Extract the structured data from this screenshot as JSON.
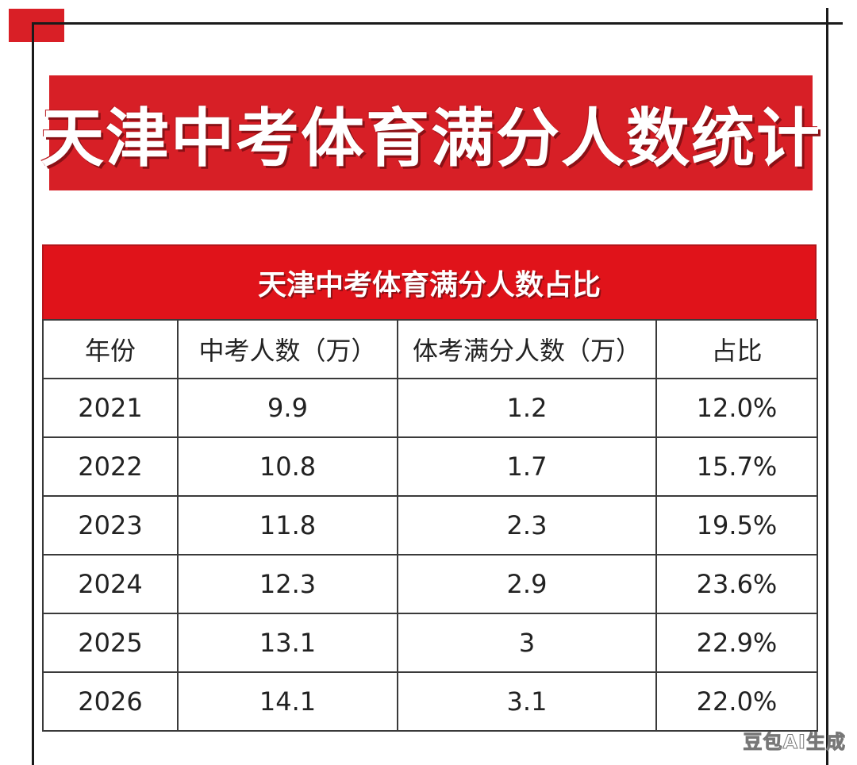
{
  "title": "天津中考体育满分人数统计",
  "table": {
    "caption": "天津中考体育满分人数占比",
    "headers": [
      "年份",
      "中考人数（万）",
      "体考满分人数（万）",
      "占比"
    ],
    "rows": [
      [
        "2021",
        "9.9",
        "1.2",
        "12.0%"
      ],
      [
        "2022",
        "10.8",
        "1.7",
        "15.7%"
      ],
      [
        "2023",
        "11.8",
        "2.3",
        "19.5%"
      ],
      [
        "2024",
        "12.3",
        "2.9",
        "23.6%"
      ],
      [
        "2025",
        "13.1",
        "3",
        "22.9%"
      ],
      [
        "2026",
        "14.1",
        "3.1",
        "22.0%"
      ]
    ]
  },
  "watermark": "豆包AI生成",
  "colors": {
    "accent_red": "#d71f26",
    "header_red": "#e0131a",
    "border": "#3a3a3a"
  }
}
